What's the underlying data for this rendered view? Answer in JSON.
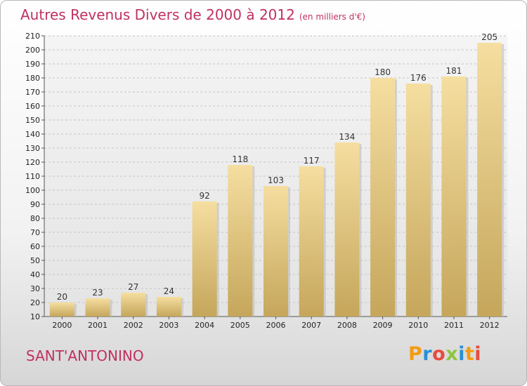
{
  "header": {
    "title": "Autres Revenus Divers de 2000 à 2012",
    "unit": "(en milliers d'€)"
  },
  "footer": {
    "town": "SANT'ANTONINO",
    "logo": "Proxiti"
  },
  "colors": {
    "title": "#c0315f",
    "bar_light": "#f5dea0",
    "bar_dark": "#c5a65b"
  },
  "chart_data": {
    "type": "bar",
    "title": "Autres Revenus Divers de 2000 à 2012",
    "xlabel": "",
    "ylabel": "",
    "categories": [
      "2000",
      "2001",
      "2002",
      "2003",
      "2004",
      "2005",
      "2006",
      "2007",
      "2008",
      "2009",
      "2010",
      "2011",
      "2012"
    ],
    "values": [
      20,
      23,
      27,
      24,
      92,
      118,
      103,
      117,
      134,
      180,
      176,
      181,
      205
    ],
    "ylim": [
      10,
      210
    ],
    "yticks": [
      10,
      20,
      30,
      40,
      50,
      60,
      70,
      80,
      90,
      100,
      110,
      120,
      130,
      140,
      150,
      160,
      170,
      180,
      190,
      200,
      210
    ],
    "grid": true,
    "legend": "none"
  }
}
